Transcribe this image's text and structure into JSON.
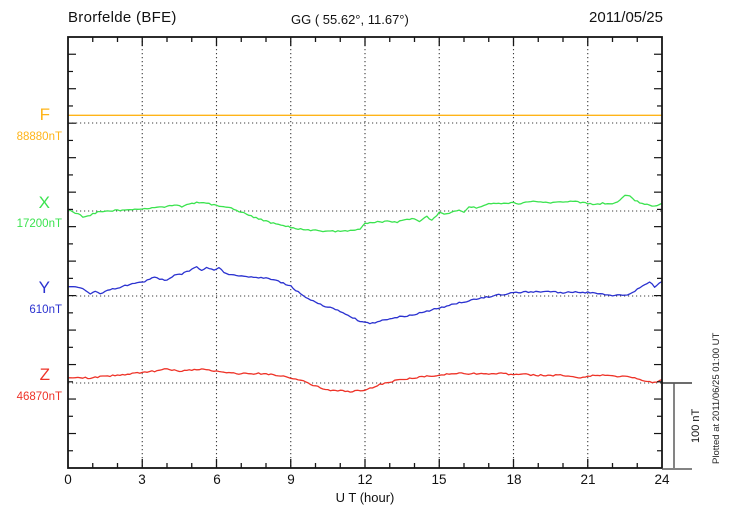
{
  "header": {
    "station": "Brorfelde (BFE)",
    "coords": "GG ( 55.62°,  11.67°)",
    "date": "2011/05/25"
  },
  "axis": {
    "xlabel": "U T (hour)",
    "ticks": [
      "0",
      "3",
      "6",
      "9",
      "12",
      "15",
      "18",
      "21",
      "24"
    ]
  },
  "scale_bar": {
    "label": "100 nT",
    "nT": 100
  },
  "plot_note": "Plotted at 2011/06/25 01:00 UT",
  "chart_data": {
    "type": "line",
    "title": "Brorfelde (BFE) magnetogram 2011/05/25",
    "xlabel": "U T (hour)",
    "x_range": [
      0,
      24
    ],
    "x_ticks": [
      0,
      3,
      6,
      9,
      12,
      15,
      18,
      21,
      24
    ],
    "grid": "dotted vertical every 3 h; dotted horizontal baseline per channel",
    "scale_bar_nT": 100,
    "series": [
      {
        "id": "F",
        "name": "F",
        "value_label": "88880nT",
        "base": 88880,
        "unit": "nT",
        "color": "#FFB418",
        "points": [
          [
            0,
            88889
          ],
          [
            24,
            88889
          ]
        ]
      },
      {
        "id": "X",
        "name": "X",
        "value_label": "17200nT",
        "base": 17200,
        "unit": "nT",
        "color": "#3BE34F",
        "points": [
          [
            0,
            17201
          ],
          [
            0.3,
            17198
          ],
          [
            0.6,
            17193
          ],
          [
            0.9,
            17195
          ],
          [
            1.2,
            17199
          ],
          [
            1.5,
            17200
          ],
          [
            2,
            17201
          ],
          [
            2.5,
            17201
          ],
          [
            3,
            17202
          ],
          [
            3.5,
            17204
          ],
          [
            4,
            17205
          ],
          [
            4.3,
            17207
          ],
          [
            4.6,
            17205
          ],
          [
            5,
            17209
          ],
          [
            5.3,
            17210
          ],
          [
            5.6,
            17209
          ],
          [
            6,
            17206
          ],
          [
            6.3,
            17205
          ],
          [
            6.6,
            17203
          ],
          [
            7,
            17199
          ],
          [
            7.5,
            17193
          ],
          [
            8,
            17188
          ],
          [
            8.5,
            17184
          ],
          [
            9,
            17181
          ],
          [
            9.5,
            17178
          ],
          [
            10,
            17177
          ],
          [
            10.5,
            17176
          ],
          [
            11,
            17176
          ],
          [
            11.5,
            17177
          ],
          [
            11.8,
            17179
          ],
          [
            12,
            17185
          ],
          [
            12.5,
            17187
          ],
          [
            13,
            17188
          ],
          [
            13.3,
            17187
          ],
          [
            13.6,
            17189
          ],
          [
            14,
            17191
          ],
          [
            14.2,
            17188
          ],
          [
            14.5,
            17193
          ],
          [
            14.7,
            17189
          ],
          [
            15,
            17198
          ],
          [
            15.2,
            17196
          ],
          [
            15.5,
            17198
          ],
          [
            15.8,
            17201
          ],
          [
            16,
            17199
          ],
          [
            16.2,
            17205
          ],
          [
            16.5,
            17204
          ],
          [
            17,
            17208
          ],
          [
            17.5,
            17209
          ],
          [
            18,
            17210
          ],
          [
            18.3,
            17208
          ],
          [
            18.6,
            17211
          ],
          [
            19,
            17211
          ],
          [
            19.5,
            17210
          ],
          [
            20,
            17211
          ],
          [
            20.5,
            17211
          ],
          [
            21,
            17209
          ],
          [
            21.3,
            17208
          ],
          [
            21.6,
            17209
          ],
          [
            22,
            17208
          ],
          [
            22.3,
            17213
          ],
          [
            22.5,
            17218
          ],
          [
            22.7,
            17217
          ],
          [
            22.9,
            17212
          ],
          [
            23.2,
            17209
          ],
          [
            23.5,
            17207
          ],
          [
            23.7,
            17205
          ],
          [
            23.9,
            17208
          ],
          [
            24,
            17209
          ]
        ]
      },
      {
        "id": "Y",
        "name": "Y",
        "value_label": "610nT",
        "base": 610,
        "unit": "nT",
        "color": "#2B32D0",
        "points": [
          [
            0,
            621
          ],
          [
            0.3,
            620
          ],
          [
            0.6,
            618
          ],
          [
            0.9,
            613
          ],
          [
            1.1,
            616
          ],
          [
            1.3,
            612
          ],
          [
            1.6,
            617
          ],
          [
            2,
            619
          ],
          [
            2.3,
            622
          ],
          [
            2.6,
            624
          ],
          [
            3,
            626
          ],
          [
            3.3,
            630
          ],
          [
            3.5,
            632
          ],
          [
            3.8,
            629
          ],
          [
            4,
            628
          ],
          [
            4.3,
            634
          ],
          [
            4.6,
            636
          ],
          [
            5,
            641
          ],
          [
            5.2,
            644
          ],
          [
            5.4,
            641
          ],
          [
            5.6,
            643
          ],
          [
            5.8,
            641
          ],
          [
            6,
            641
          ],
          [
            6.1,
            643
          ],
          [
            6.3,
            638
          ],
          [
            6.6,
            635
          ],
          [
            7,
            634
          ],
          [
            7.3,
            633
          ],
          [
            7.6,
            632
          ],
          [
            8,
            631
          ],
          [
            8.3,
            629
          ],
          [
            8.6,
            626
          ],
          [
            9,
            622
          ],
          [
            9.2,
            617
          ],
          [
            9.5,
            610
          ],
          [
            9.8,
            605
          ],
          [
            10,
            603
          ],
          [
            10.3,
            599
          ],
          [
            10.6,
            596
          ],
          [
            11,
            592
          ],
          [
            11.3,
            588
          ],
          [
            11.6,
            583
          ],
          [
            11.9,
            579
          ],
          [
            12.1,
            578
          ],
          [
            12.4,
            578
          ],
          [
            12.7,
            581
          ],
          [
            13,
            584
          ],
          [
            13.3,
            585
          ],
          [
            13.6,
            586
          ],
          [
            14,
            588
          ],
          [
            14.3,
            591
          ],
          [
            14.6,
            593
          ],
          [
            15,
            596
          ],
          [
            15.3,
            598
          ],
          [
            15.6,
            601
          ],
          [
            16,
            603
          ],
          [
            16.3,
            605
          ],
          [
            16.6,
            607
          ],
          [
            17,
            609
          ],
          [
            17.3,
            611
          ],
          [
            17.6,
            612
          ],
          [
            18,
            614
          ],
          [
            18.3,
            614
          ],
          [
            18.6,
            615
          ],
          [
            19,
            615
          ],
          [
            19.3,
            615
          ],
          [
            19.6,
            615
          ],
          [
            20,
            614
          ],
          [
            20.3,
            615
          ],
          [
            20.6,
            614
          ],
          [
            21,
            614
          ],
          [
            21.3,
            613
          ],
          [
            21.6,
            612
          ],
          [
            22,
            610
          ],
          [
            22.3,
            611
          ],
          [
            22.6,
            612
          ],
          [
            22.9,
            616
          ],
          [
            23.2,
            621
          ],
          [
            23.5,
            626
          ],
          [
            23.7,
            621
          ],
          [
            23.9,
            626
          ],
          [
            24,
            627
          ]
        ]
      },
      {
        "id": "Z",
        "name": "Z",
        "value_label": "46870nT",
        "base": 46870,
        "unit": "nT",
        "color": "#EE3328",
        "points": [
          [
            0,
            46876
          ],
          [
            0.5,
            46876
          ],
          [
            1,
            46876
          ],
          [
            1.5,
            46878
          ],
          [
            2,
            46879
          ],
          [
            2.5,
            46881
          ],
          [
            3,
            46882
          ],
          [
            3.5,
            46884
          ],
          [
            3.9,
            46887
          ],
          [
            4.2,
            46885
          ],
          [
            4.5,
            46884
          ],
          [
            5,
            46885
          ],
          [
            5.5,
            46886
          ],
          [
            6,
            46884
          ],
          [
            6.5,
            46882
          ],
          [
            7,
            46881
          ],
          [
            7.5,
            46881
          ],
          [
            8,
            46881
          ],
          [
            8.5,
            46879
          ],
          [
            9,
            46876
          ],
          [
            9.4,
            46873
          ],
          [
            9.7,
            46870
          ],
          [
            10,
            46866
          ],
          [
            10.5,
            46862
          ],
          [
            11,
            46861
          ],
          [
            11.5,
            46860
          ],
          [
            12,
            46862
          ],
          [
            12.3,
            46864
          ],
          [
            12.6,
            46868
          ],
          [
            12.8,
            46870
          ],
          [
            13.1,
            46872
          ],
          [
            13.4,
            46874
          ],
          [
            14,
            46876
          ],
          [
            14.5,
            46878
          ],
          [
            15,
            46879
          ],
          [
            15.5,
            46881
          ],
          [
            15.8,
            46882
          ],
          [
            16.2,
            46881
          ],
          [
            16.6,
            46881
          ],
          [
            17,
            46881
          ],
          [
            17.5,
            46881
          ],
          [
            18,
            46880
          ],
          [
            18.5,
            46880
          ],
          [
            19,
            46879
          ],
          [
            19.5,
            46879
          ],
          [
            20,
            46879
          ],
          [
            20.5,
            46877
          ],
          [
            20.8,
            46876
          ],
          [
            21,
            46878
          ],
          [
            21.5,
            46879
          ],
          [
            22,
            46878
          ],
          [
            22.5,
            46878
          ],
          [
            23,
            46875
          ],
          [
            23.3,
            46872
          ],
          [
            23.6,
            46871
          ],
          [
            23.8,
            46872
          ],
          [
            24,
            46874
          ]
        ]
      }
    ]
  }
}
